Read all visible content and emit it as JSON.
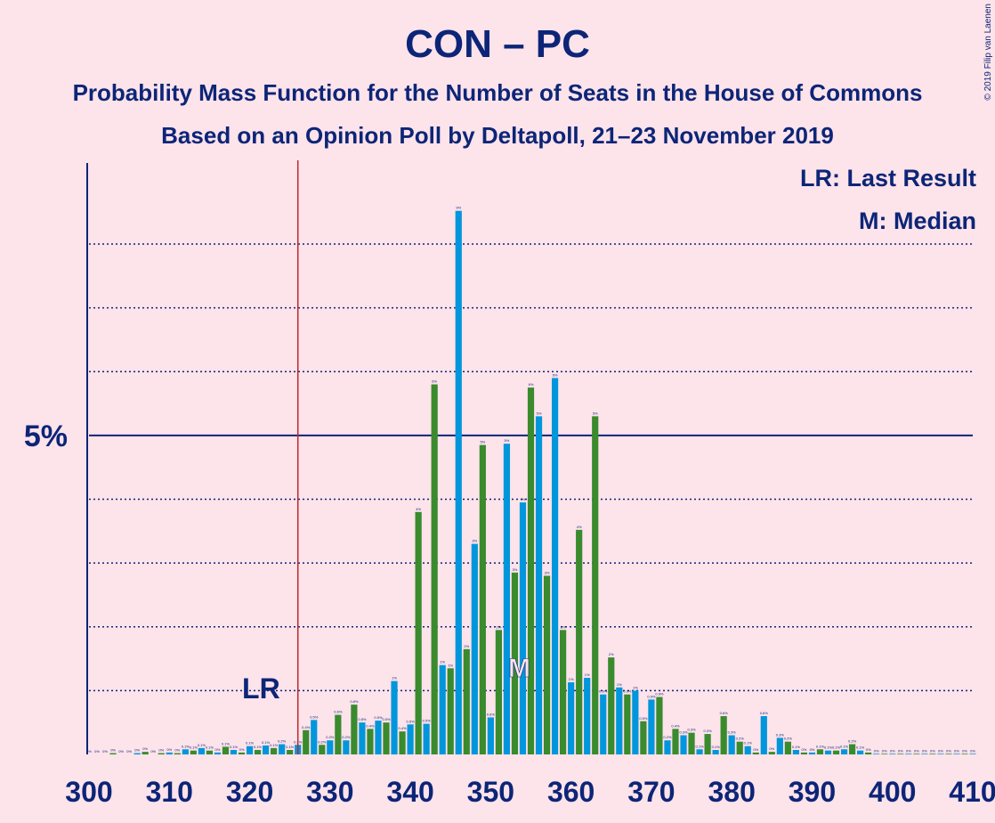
{
  "chart_data": {
    "type": "bar",
    "title": "CON – PC",
    "subtitle": "Probability Mass Function for the Number of Seats in the House of Commons",
    "subtitle2": "Based on an Opinion Poll by Deltapoll, 21–23 November 2019",
    "copyright": "© 2019 Filip van Laenen",
    "legend": [
      "LR: Last Result",
      "M: Median"
    ],
    "x": [
      300,
      301,
      302,
      303,
      304,
      305,
      306,
      307,
      308,
      309,
      310,
      311,
      312,
      313,
      314,
      315,
      316,
      317,
      318,
      319,
      320,
      321,
      322,
      323,
      324,
      325,
      326,
      327,
      328,
      329,
      330,
      331,
      332,
      333,
      334,
      335,
      336,
      337,
      338,
      339,
      340,
      341,
      342,
      343,
      344,
      345,
      346,
      347,
      348,
      349,
      350,
      351,
      352,
      353,
      354,
      355,
      356,
      357,
      358,
      359,
      360,
      361,
      362,
      363,
      364,
      365,
      366,
      367,
      368,
      369,
      370,
      371,
      372,
      373,
      374,
      375,
      376,
      377,
      378,
      379,
      380,
      381,
      382,
      383,
      384,
      385,
      386,
      387,
      388,
      389,
      390,
      391,
      392,
      393,
      394,
      395,
      396,
      397,
      398,
      399,
      400,
      401,
      402,
      403,
      404,
      405,
      406,
      407,
      408,
      409,
      410
    ],
    "values": [
      0,
      0,
      0,
      0.02,
      0,
      0,
      0.02,
      0.04,
      0,
      0.02,
      0.03,
      0.02,
      0.08,
      0.06,
      0.1,
      0.06,
      0.03,
      0.12,
      0.07,
      0.03,
      0.13,
      0.07,
      0.14,
      0.1,
      0.16,
      0.07,
      0.15,
      0.38,
      0.54,
      0.15,
      0.22,
      0.62,
      0.22,
      0.78,
      0.5,
      0.4,
      0.53,
      0.5,
      1.15,
      0.36,
      0.47,
      3.8,
      0.48,
      5.8,
      1.4,
      1.35,
      8.52,
      1.65,
      3.3,
      4.85,
      0.58,
      1.95,
      4.87,
      2.85,
      3.95,
      5.75,
      5.3,
      2.8,
      5.9,
      1.95,
      1.13,
      3.52,
      1.2,
      5.3,
      0.94,
      1.52,
      1.05,
      0.94,
      1.0,
      0.52,
      0.86,
      0.9,
      0.22,
      0.4,
      0.3,
      0.34,
      0.08,
      0.32,
      0.07,
      0.6,
      0.3,
      0.2,
      0.13,
      0.03,
      0.6,
      0.04,
      0.26,
      0.2,
      0.07,
      0.03,
      0.03,
      0.08,
      0.06,
      0.06,
      0.08,
      0.16,
      0.06,
      0.03,
      0.01,
      0.01,
      0.01,
      0.01,
      0.01,
      0.01,
      0.01,
      0.01,
      0.01,
      0.01,
      0.01,
      0.01,
      0.01
    ],
    "value_labels": [
      "0%",
      "0%",
      "0%",
      "0%",
      "0%",
      "0%",
      "0%",
      "0%",
      "0%",
      "0%",
      "0%",
      "0%",
      "0.1%",
      "0.1%",
      "0.1%",
      "0.1%",
      "0%",
      "0.1%",
      "0.1%",
      "0%",
      "0.1%",
      "0.1%",
      "0.1%",
      "0.1%",
      "0.2%",
      "0.1%",
      "0.2%",
      "0.4%",
      "0.5%",
      "0.2%",
      "0.2%",
      "0.6%",
      "0.2%",
      "0.8%",
      "0.5%",
      "0.4%",
      "0.5%",
      "0.5%",
      "1%",
      "0.4%",
      "0.5%",
      "4%",
      "0.5%",
      "6%",
      "1%",
      "1%",
      "9%",
      "2%",
      "3%",
      "5%",
      "0.6%",
      "2%",
      "5%",
      "3%",
      "4%",
      "6%",
      "5%",
      "3%",
      "6%",
      "2%",
      "1%",
      "4%",
      "1%",
      "5%",
      "0.9%",
      "2%",
      "1%",
      "0.9%",
      "1%",
      "0.5%",
      "0.9%",
      "0.9%",
      "0.2%",
      "0.4%",
      "0.3%",
      "0.3%",
      "0.1%",
      "0.3%",
      "0.1%",
      "0.6%",
      "0.3%",
      "0.2%",
      "0.1%",
      "0%",
      "0.6%",
      "0%",
      "0.3%",
      "0.2%",
      "0.1%",
      "0%",
      "0%",
      "0.1%",
      "0.1%",
      "0.1%",
      "0.1%",
      "0.2%",
      "0.1%",
      "0%",
      "0%",
      "0%",
      "0%",
      "0%",
      "0%",
      "0%",
      "0%",
      "0%",
      "0%",
      "0%",
      "0%",
      "0%",
      "0%"
    ],
    "bar_colors": [
      "#0096dc",
      "#3a8a2e"
    ],
    "xlim": [
      300,
      410
    ],
    "xticks": [
      300,
      310,
      320,
      330,
      340,
      350,
      360,
      370,
      380,
      390,
      400,
      410
    ],
    "ylim": [
      0,
      9.27
    ],
    "yticks": [
      {
        "value": 5,
        "label": "5%"
      }
    ],
    "grid_values": [
      1,
      2,
      3,
      4,
      6,
      7,
      8
    ],
    "last_result": 326,
    "last_result_label": "LR",
    "median": 354,
    "median_label": "M"
  }
}
